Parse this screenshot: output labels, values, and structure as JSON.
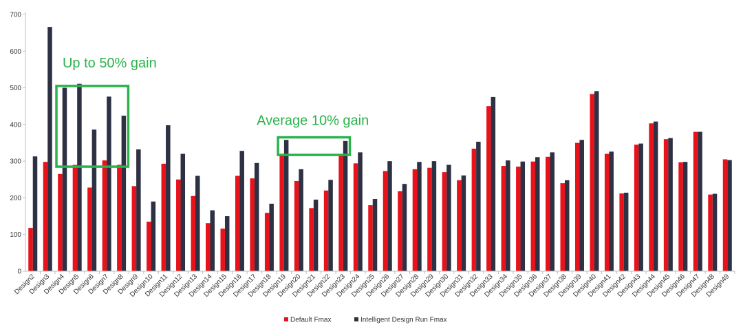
{
  "chart_data": {
    "type": "bar",
    "categories": [
      "Design2",
      "Design3",
      "Design4",
      "Design5",
      "Design6",
      "Design7",
      "Design8",
      "Design9",
      "Design10",
      "Design11",
      "Design12",
      "Design13",
      "Design14",
      "Design15",
      "Design16",
      "Design17",
      "Design18",
      "Design19",
      "Design20",
      "Design21",
      "Design22",
      "Design23",
      "Design24",
      "Design25",
      "Design26",
      "Design27",
      "Design28",
      "Design29",
      "Design30",
      "Design31",
      "Design32",
      "Design33",
      "Design34",
      "Design35",
      "Design36",
      "Design37",
      "Design38",
      "Design39",
      "Design40",
      "Design41",
      "Design42",
      "Design43",
      "Design44",
      "Design45",
      "Design46",
      "Design47",
      "Design48",
      "Design49"
    ],
    "series": [
      {
        "name": "Default Fmax",
        "color": "#e8121b",
        "values": [
          118,
          298,
          265,
          290,
          228,
          302,
          290,
          232,
          135,
          293,
          250,
          205,
          131,
          116,
          260,
          253,
          159,
          320,
          246,
          172,
          220,
          320,
          294,
          180,
          273,
          218,
          278,
          282,
          270,
          248,
          334,
          450,
          287,
          285,
          299,
          312,
          240,
          350,
          483,
          320,
          212,
          345,
          403,
          360,
          297,
          380,
          209,
          305
        ]
      },
      {
        "name": "Intelligent Design Run Fmax",
        "color": "#2e3044",
        "values": [
          313,
          666,
          500,
          511,
          386,
          476,
          424,
          332,
          190,
          398,
          320,
          260,
          166,
          150,
          328,
          295,
          184,
          358,
          278,
          195,
          249,
          355,
          324,
          197,
          300,
          238,
          298,
          300,
          290,
          261,
          353,
          475,
          302,
          299,
          311,
          324,
          248,
          358,
          491,
          326,
          214,
          348,
          408,
          363,
          298,
          380,
          211,
          303
        ]
      }
    ],
    "ylim": [
      0,
      700
    ],
    "yticks": [
      0,
      100,
      200,
      300,
      400,
      500,
      600,
      700
    ],
    "grid": false,
    "legend_placement": "bottom-center",
    "annotations": [
      {
        "text": "Up to 50% gain",
        "color": "#2bb24c",
        "box_categories": [
          "Design4",
          "Design8"
        ],
        "box_yrange": [
          285,
          505
        ]
      },
      {
        "text": "Average 10% gain",
        "color": "#2bb24c",
        "box_categories": [
          "Design19",
          "Design23"
        ],
        "box_yrange": [
          317,
          365
        ]
      }
    ]
  }
}
